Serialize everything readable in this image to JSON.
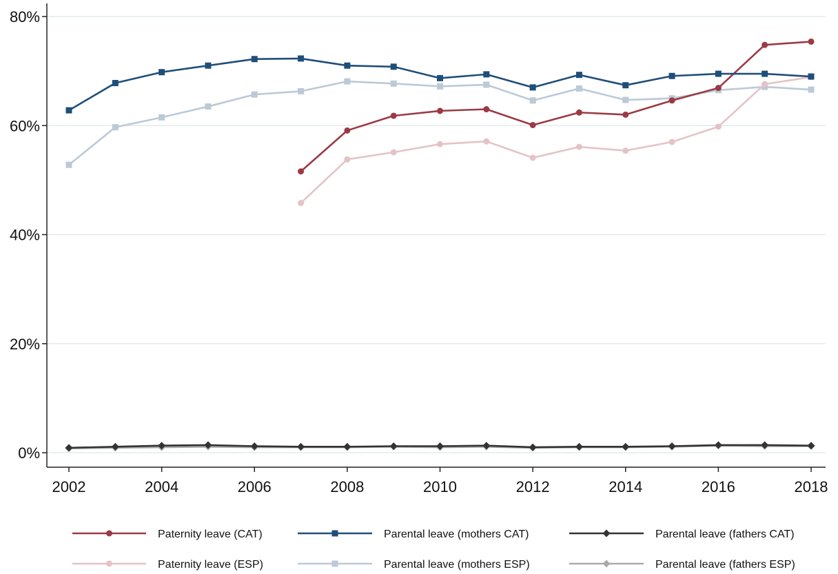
{
  "chart_data": {
    "type": "line",
    "x": [
      2002,
      2003,
      2004,
      2005,
      2006,
      2007,
      2008,
      2009,
      2010,
      2011,
      2012,
      2013,
      2014,
      2015,
      2016,
      2017,
      2018
    ],
    "xlim": [
      2002,
      2018
    ],
    "ylim": [
      0,
      80
    ],
    "x_ticks": [
      2002,
      2004,
      2006,
      2008,
      2010,
      2012,
      2014,
      2016,
      2018
    ],
    "x_tick_labels": [
      "2002",
      "2004",
      "2006",
      "2008",
      "2010",
      "2012",
      "2014",
      "2016",
      "2018"
    ],
    "y_ticks": [
      0,
      20,
      40,
      60,
      80
    ],
    "y_tick_labels": [
      "0%",
      "20%",
      "40%",
      "60%",
      "80%"
    ],
    "grid": true,
    "legend_position": "bottom",
    "series": [
      {
        "name": "Paternity leave (CAT)",
        "color": "#9b3a44",
        "marker": "circle",
        "values": [
          null,
          null,
          null,
          null,
          null,
          51.6,
          59.1,
          61.8,
          62.7,
          63.0,
          60.1,
          62.4,
          62.0,
          64.6,
          66.9,
          74.8,
          75.4
        ]
      },
      {
        "name": "Parental leave (mothers CAT)",
        "color": "#1f4e79",
        "marker": "square",
        "values": [
          62.8,
          67.8,
          69.8,
          71.0,
          72.2,
          72.3,
          71.0,
          70.8,
          68.7,
          69.4,
          67.0,
          69.3,
          67.4,
          69.1,
          69.5,
          69.5,
          69.0
        ]
      },
      {
        "name": "Parental leave (fathers CAT)",
        "color": "#333333",
        "marker": "diamond",
        "values": [
          0.9,
          1.1,
          1.3,
          1.4,
          1.2,
          1.1,
          1.1,
          1.2,
          1.2,
          1.3,
          1.0,
          1.1,
          1.1,
          1.2,
          1.4,
          1.4,
          1.3
        ]
      },
      {
        "name": "Paternity leave (ESP)",
        "color": "#e4c3c6",
        "marker": "circle",
        "values": [
          null,
          null,
          null,
          null,
          null,
          45.8,
          53.8,
          55.1,
          56.6,
          57.1,
          54.1,
          56.1,
          55.4,
          57.0,
          59.8,
          67.6,
          68.9
        ]
      },
      {
        "name": "Parental leave (mothers ESP)",
        "color": "#bcc9d6",
        "marker": "square",
        "values": [
          52.8,
          59.7,
          61.5,
          63.5,
          65.7,
          66.3,
          68.1,
          67.7,
          67.2,
          67.5,
          64.6,
          66.8,
          64.7,
          65.0,
          66.5,
          67.1,
          66.6
        ]
      },
      {
        "name": "Parental leave (fathers ESP)",
        "color": "#aaaaaa",
        "marker": "diamond",
        "values": [
          0.8,
          0.9,
          1.0,
          1.1,
          1.0,
          1.0,
          1.0,
          1.1,
          1.0,
          1.1,
          0.9,
          1.0,
          1.0,
          1.1,
          1.3,
          1.2,
          1.2
        ]
      }
    ]
  }
}
